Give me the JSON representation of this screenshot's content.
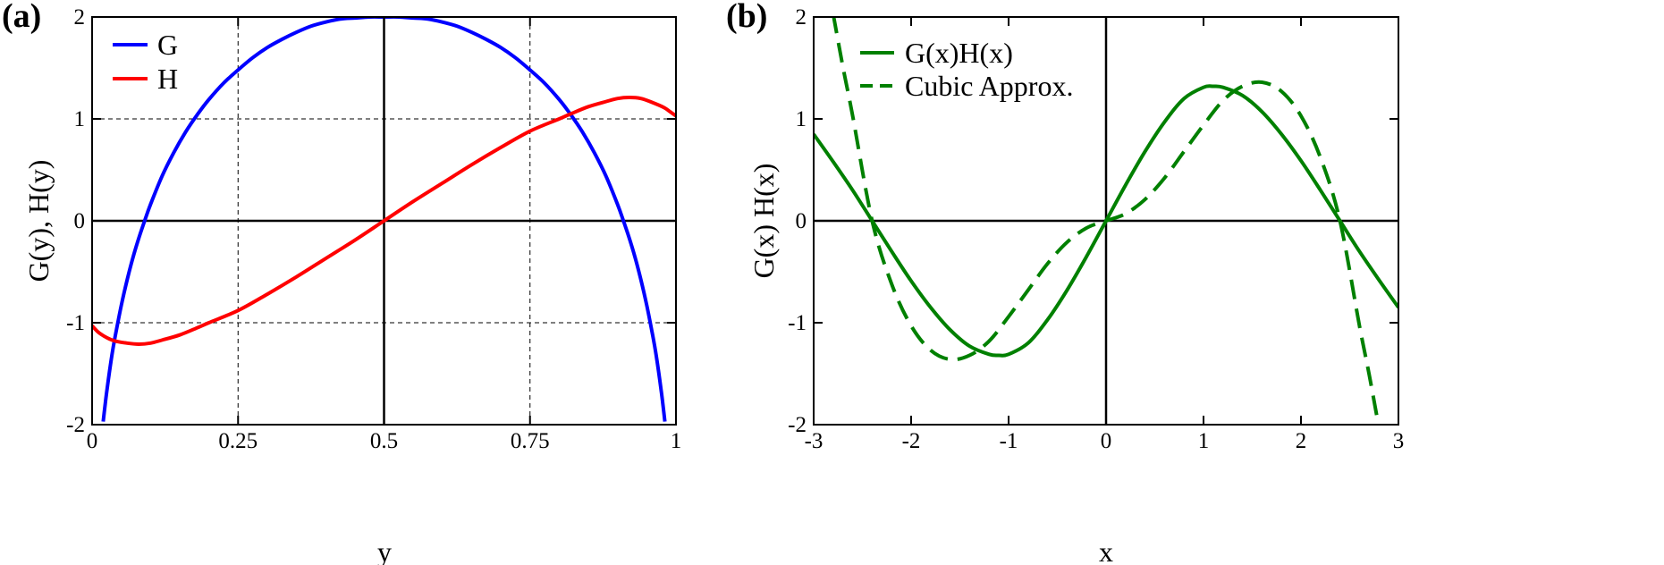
{
  "chart_data": [
    {
      "panel_label": "(a)",
      "type": "line",
      "title": "",
      "xlabel": "y",
      "ylabel": "G(y), H(y)",
      "xlim": [
        0,
        1
      ],
      "ylim": [
        -2,
        2
      ],
      "grid": true,
      "xticks": [
        0,
        0.25,
        0.5,
        0.75,
        1
      ],
      "xtick_labels": [
        "0",
        "0.25",
        "0.5",
        "0.75",
        "1"
      ],
      "yticks": [
        -2,
        -1,
        0,
        1,
        2
      ],
      "ytick_labels": [
        "-2",
        "-1",
        "0",
        "1",
        "2"
      ],
      "legend_position": "top-left",
      "series": [
        {
          "name": "G",
          "color": "#0000ff",
          "dashed": false,
          "x": [
            0.019,
            0.022,
            0.025,
            0.03,
            0.035,
            0.04,
            0.05,
            0.06,
            0.07,
            0.08,
            0.09,
            0.1,
            0.12,
            0.14,
            0.16,
            0.18,
            0.2,
            0.225,
            0.25,
            0.275,
            0.3,
            0.325,
            0.35,
            0.375,
            0.4,
            0.425,
            0.45,
            0.475,
            0.5,
            0.525,
            0.55,
            0.575,
            0.6,
            0.625,
            0.65,
            0.675,
            0.7,
            0.725,
            0.75,
            0.775,
            0.8,
            0.82,
            0.84,
            0.86,
            0.88,
            0.9,
            0.91,
            0.92,
            0.93,
            0.94,
            0.95,
            0.96,
            0.965,
            0.97,
            0.975,
            0.978,
            0.981
          ],
          "y": [
            -1.97,
            -1.82,
            -1.68,
            -1.47,
            -1.28,
            -1.12,
            -0.83,
            -0.58,
            -0.36,
            -0.17,
            0.0,
            0.16,
            0.44,
            0.67,
            0.87,
            1.04,
            1.19,
            1.35,
            1.48,
            1.6,
            1.7,
            1.78,
            1.85,
            1.91,
            1.95,
            1.98,
            1.99,
            2.0,
            2.0,
            2.0,
            1.99,
            1.98,
            1.95,
            1.91,
            1.85,
            1.78,
            1.7,
            1.6,
            1.48,
            1.35,
            1.19,
            1.04,
            0.87,
            0.67,
            0.44,
            0.16,
            0.0,
            -0.17,
            -0.36,
            -0.58,
            -0.83,
            -1.12,
            -1.28,
            -1.47,
            -1.68,
            -1.82,
            -1.97
          ]
        },
        {
          "name": "H",
          "color": "#ff0000",
          "dashed": false,
          "x": [
            0,
            0.01,
            0.02,
            0.03,
            0.04,
            0.06,
            0.08,
            0.1,
            0.12,
            0.15,
            0.18,
            0.2,
            0.25,
            0.3,
            0.35,
            0.4,
            0.45,
            0.5,
            0.55,
            0.6,
            0.65,
            0.7,
            0.75,
            0.8,
            0.82,
            0.85,
            0.88,
            0.9,
            0.92,
            0.94,
            0.96,
            0.98,
            0.99,
            1.0
          ],
          "y": [
            -1.03,
            -1.09,
            -1.13,
            -1.16,
            -1.18,
            -1.2,
            -1.21,
            -1.2,
            -1.17,
            -1.12,
            -1.05,
            -1.0,
            -0.88,
            -0.72,
            -0.55,
            -0.37,
            -0.19,
            0.0,
            0.19,
            0.37,
            0.55,
            0.72,
            0.88,
            1.0,
            1.05,
            1.12,
            1.17,
            1.2,
            1.21,
            1.2,
            1.16,
            1.11,
            1.07,
            1.03
          ]
        }
      ]
    },
    {
      "panel_label": "(b)",
      "type": "line",
      "title": "",
      "xlabel": "x",
      "ylabel": "G(x) H(x)",
      "xlim": [
        -3,
        3
      ],
      "ylim": [
        -2,
        2
      ],
      "grid": false,
      "xticks": [
        -3,
        -2,
        -1,
        0,
        1,
        2,
        3
      ],
      "xtick_labels": [
        "-3",
        "-2",
        "-1",
        "0",
        "1",
        "2",
        "3"
      ],
      "yticks": [
        -2,
        -1,
        0,
        1,
        2
      ],
      "ytick_labels": [
        "-2",
        "-1",
        "0",
        "1",
        "2"
      ],
      "legend_position": "top-left",
      "series": [
        {
          "name": "G(x)H(x)",
          "color": "#008000",
          "dashed": false,
          "x": [
            -3.0,
            -2.8,
            -2.6,
            -2.4,
            -2.2,
            -2.0,
            -1.8,
            -1.6,
            -1.4,
            -1.2,
            -1.1,
            -1.0,
            -0.8,
            -0.6,
            -0.4,
            -0.2,
            0.0,
            0.2,
            0.4,
            0.6,
            0.8,
            1.0,
            1.1,
            1.2,
            1.4,
            1.6,
            1.8,
            2.0,
            2.2,
            2.4,
            2.6,
            2.8,
            3.0
          ],
          "y": [
            0.85,
            0.58,
            0.3,
            0.0,
            -0.3,
            -0.59,
            -0.85,
            -1.07,
            -1.23,
            -1.31,
            -1.32,
            -1.31,
            -1.2,
            -0.97,
            -0.68,
            -0.35,
            0.0,
            0.35,
            0.68,
            0.97,
            1.2,
            1.31,
            1.32,
            1.31,
            1.23,
            1.07,
            0.85,
            0.59,
            0.3,
            0.0,
            -0.3,
            -0.58,
            -0.85
          ]
        },
        {
          "name": "Cubic Approx.",
          "color": "#008000",
          "dashed": true,
          "x": [
            -2.8,
            -2.7,
            -2.6,
            -2.4,
            -2.2,
            -2.0,
            -1.8,
            -1.6,
            -1.4,
            -1.2,
            -1.0,
            -0.8,
            -0.6,
            -0.4,
            -0.2,
            0.0,
            0.2,
            0.4,
            0.6,
            0.8,
            1.0,
            1.2,
            1.4,
            1.6,
            1.8,
            2.0,
            2.2,
            2.4,
            2.6,
            2.7,
            2.8
          ],
          "y": [
            2.03,
            1.51,
            1.03,
            0.0,
            -0.62,
            -1.03,
            -1.27,
            -1.36,
            -1.32,
            -1.18,
            -0.94,
            -0.68,
            -0.42,
            -0.21,
            -0.07,
            0.0,
            0.07,
            0.21,
            0.42,
            0.68,
            0.94,
            1.18,
            1.32,
            1.36,
            1.27,
            1.03,
            0.62,
            0.0,
            -1.03,
            -1.51,
            -2.03
          ]
        }
      ]
    }
  ]
}
